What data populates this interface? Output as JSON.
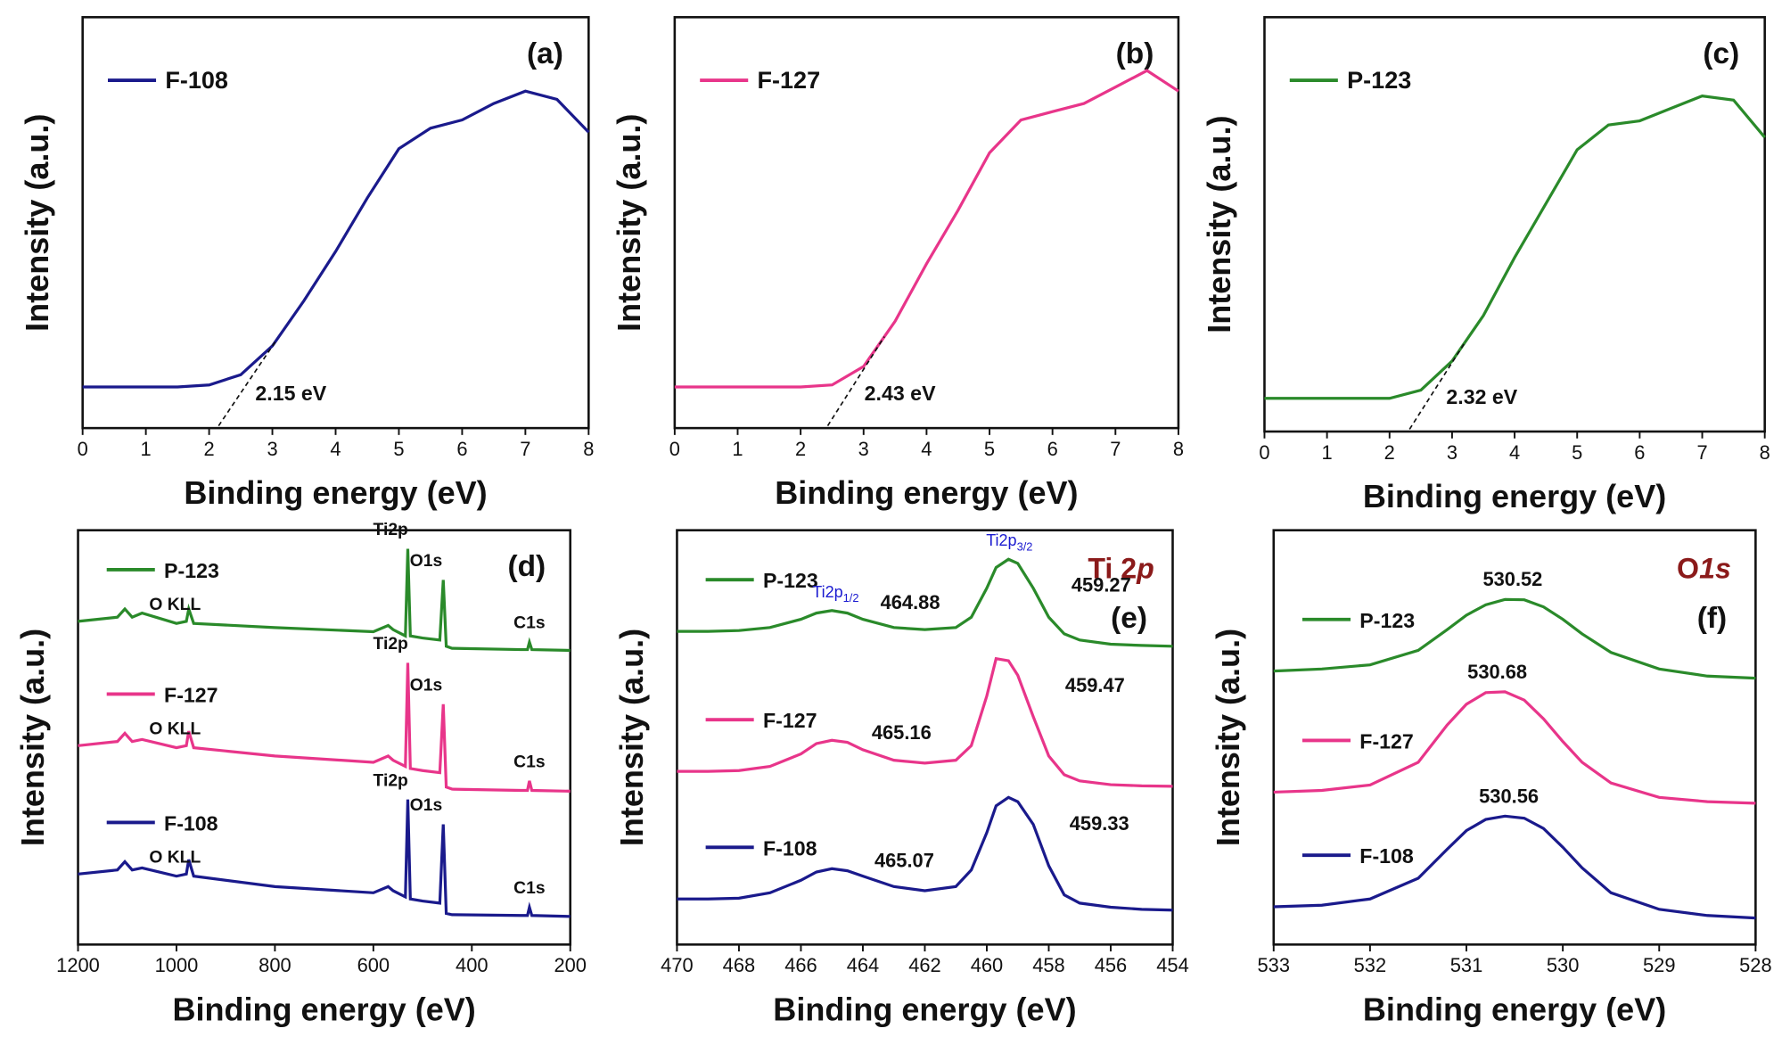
{
  "chart_data": [
    {
      "type": "line",
      "panel_label": "(a)",
      "xlabel": "Binding energy (eV)",
      "ylabel": "Intensity (a.u.)",
      "x": [
        0,
        0.5,
        1,
        1.5,
        2,
        2.5,
        3,
        3.5,
        4,
        4.5,
        5,
        5.5,
        6,
        6.5,
        7,
        7.5,
        8
      ],
      "xlim": [
        0,
        8
      ],
      "xticks": [
        0,
        1,
        2,
        3,
        4,
        5,
        6,
        7,
        8
      ],
      "ylim": [
        0,
        1
      ],
      "series": [
        {
          "name": "F-108",
          "color": "#1a1a8c",
          "values": [
            0.1,
            0.1,
            0.1,
            0.1,
            0.105,
            0.13,
            0.2,
            0.31,
            0.43,
            0.56,
            0.68,
            0.73,
            0.75,
            0.79,
            0.82,
            0.8,
            0.72
          ]
        }
      ],
      "annotation": {
        "label": "2.15 eV",
        "value": 2.15
      }
    },
    {
      "type": "line",
      "panel_label": "(b)",
      "xlabel": "Binding energy (eV)",
      "ylabel": "Intensity (a.u.)",
      "x": [
        0,
        0.5,
        1,
        1.5,
        2,
        2.5,
        3,
        3.5,
        4,
        4.5,
        5,
        5.5,
        6,
        6.5,
        7,
        7.5,
        8
      ],
      "xlim": [
        0,
        8
      ],
      "xticks": [
        0,
        1,
        2,
        3,
        4,
        5,
        6,
        7,
        8
      ],
      "ylim": [
        0,
        1
      ],
      "series": [
        {
          "name": "F-127",
          "color": "#e8358a",
          "values": [
            0.1,
            0.1,
            0.1,
            0.1,
            0.1,
            0.105,
            0.15,
            0.26,
            0.4,
            0.53,
            0.67,
            0.75,
            0.77,
            0.79,
            0.83,
            0.87,
            0.82
          ]
        }
      ],
      "annotation": {
        "label": "2.43 eV",
        "value": 2.43
      }
    },
    {
      "type": "line",
      "panel_label": "(c)",
      "xlabel": "Binding energy (eV)",
      "ylabel": "Intensity (a.u.)",
      "x": [
        0,
        0.5,
        1,
        1.5,
        2,
        2.5,
        3,
        3.5,
        4,
        4.5,
        5,
        5.5,
        6,
        6.5,
        7,
        7.5,
        8
      ],
      "xlim": [
        0,
        8
      ],
      "xticks": [
        0,
        1,
        2,
        3,
        4,
        5,
        6,
        7,
        8
      ],
      "ylim": [
        0,
        1
      ],
      "series": [
        {
          "name": "P-123",
          "color": "#2a8a2a",
          "values": [
            0.08,
            0.08,
            0.08,
            0.08,
            0.08,
            0.1,
            0.17,
            0.28,
            0.42,
            0.55,
            0.68,
            0.74,
            0.75,
            0.78,
            0.81,
            0.8,
            0.71
          ]
        }
      ],
      "annotation": {
        "label": "2.32 eV",
        "value": 2.32
      }
    },
    {
      "type": "line",
      "panel_label": "(d)",
      "xlabel": "Binding energy (eV)",
      "ylabel": "Intensity (a.u.)",
      "x": [
        1200,
        1120,
        1105,
        1090,
        1070,
        1000,
        980,
        975,
        965,
        800,
        600,
        570,
        560,
        535,
        530,
        525,
        500,
        465,
        458,
        452,
        440,
        300,
        287,
        283,
        278,
        200
      ],
      "xlim": [
        1200,
        200
      ],
      "xticks": [
        1200,
        1000,
        800,
        600,
        400,
        200
      ],
      "ylim": [
        0,
        1
      ],
      "peak_names": [
        "O KLL",
        "Ti2p",
        "O1s",
        "C1s"
      ],
      "series": [
        {
          "name": "P-123",
          "color": "#2a8a2a",
          "values": [
            0.78,
            0.79,
            0.81,
            0.79,
            0.8,
            0.775,
            0.78,
            0.81,
            0.775,
            0.765,
            0.755,
            0.77,
            0.76,
            0.745,
            0.955,
            0.745,
            0.74,
            0.735,
            0.88,
            0.72,
            0.715,
            0.712,
            0.712,
            0.73,
            0.712,
            0.71
          ]
        },
        {
          "name": "F-127",
          "color": "#e8358a",
          "values": [
            0.48,
            0.49,
            0.51,
            0.49,
            0.495,
            0.475,
            0.48,
            0.515,
            0.475,
            0.455,
            0.44,
            0.455,
            0.445,
            0.43,
            0.68,
            0.425,
            0.42,
            0.415,
            0.58,
            0.38,
            0.375,
            0.372,
            0.372,
            0.395,
            0.372,
            0.37
          ]
        },
        {
          "name": "F-108",
          "color": "#1a1a8c",
          "values": [
            0.17,
            0.18,
            0.2,
            0.18,
            0.185,
            0.165,
            0.17,
            0.205,
            0.165,
            0.14,
            0.125,
            0.14,
            0.13,
            0.115,
            0.35,
            0.11,
            0.105,
            0.1,
            0.29,
            0.075,
            0.072,
            0.07,
            0.07,
            0.09,
            0.07,
            0.068
          ]
        }
      ]
    },
    {
      "type": "line",
      "panel_label": "(e)",
      "xlabel": "Binding energy (eV)",
      "ylabel": "Intensity (a.u.)",
      "heading": "Ti 2",
      "heading_italic": "p",
      "peak_names": [
        "Ti2p",
        "Ti2p"
      ],
      "peak_name_subs": [
        "1/2",
        "3/2"
      ],
      "x": [
        470,
        469,
        468,
        467,
        466,
        465.5,
        465,
        464.5,
        464,
        463,
        462,
        461,
        460.5,
        460,
        459.7,
        459.3,
        459,
        458.5,
        458,
        457.5,
        457,
        456,
        455,
        454
      ],
      "xlim": [
        470,
        454
      ],
      "xticks": [
        470,
        468,
        466,
        464,
        462,
        460,
        458,
        456,
        454
      ],
      "ylim": [
        0,
        1
      ],
      "series": [
        {
          "name": "P-123",
          "color": "#2a8a2a",
          "peaks": [
            464.88,
            459.27
          ],
          "values": [
            0.756,
            0.756,
            0.758,
            0.765,
            0.785,
            0.8,
            0.806,
            0.8,
            0.785,
            0.765,
            0.76,
            0.765,
            0.79,
            0.86,
            0.91,
            0.93,
            0.92,
            0.86,
            0.79,
            0.75,
            0.735,
            0.725,
            0.722,
            0.72
          ]
        },
        {
          "name": "F-127",
          "color": "#e8358a",
          "peaks": [
            465.16,
            459.47
          ],
          "values": [
            0.418,
            0.418,
            0.42,
            0.43,
            0.46,
            0.485,
            0.493,
            0.488,
            0.47,
            0.445,
            0.438,
            0.445,
            0.48,
            0.6,
            0.69,
            0.685,
            0.65,
            0.55,
            0.455,
            0.41,
            0.395,
            0.386,
            0.383,
            0.382
          ]
        },
        {
          "name": "F-108",
          "color": "#1a1a8c",
          "peaks": [
            465.07,
            459.33
          ],
          "values": [
            0.11,
            0.11,
            0.112,
            0.125,
            0.155,
            0.175,
            0.183,
            0.178,
            0.165,
            0.14,
            0.13,
            0.14,
            0.18,
            0.27,
            0.335,
            0.355,
            0.345,
            0.29,
            0.19,
            0.12,
            0.1,
            0.09,
            0.085,
            0.083
          ]
        }
      ]
    },
    {
      "type": "line",
      "panel_label": "(f)",
      "xlabel": "Binding energy (eV)",
      "ylabel": "Intensity (a.u.)",
      "heading": "O",
      "heading_italic": "1s",
      "x": [
        533,
        532.5,
        532,
        531.5,
        531.2,
        531,
        530.8,
        530.6,
        530.4,
        530.2,
        530,
        529.8,
        529.5,
        529,
        528.5,
        528
      ],
      "xlim": [
        533,
        528
      ],
      "xticks": [
        533,
        532,
        531,
        530,
        529,
        528
      ],
      "ylim": [
        0,
        1
      ],
      "series": [
        {
          "name": "P-123",
          "color": "#2a8a2a",
          "peaks": [
            530.52
          ],
          "values": [
            0.66,
            0.665,
            0.675,
            0.71,
            0.76,
            0.795,
            0.82,
            0.833,
            0.832,
            0.815,
            0.785,
            0.75,
            0.705,
            0.665,
            0.648,
            0.643
          ]
        },
        {
          "name": "F-127",
          "color": "#e8358a",
          "peaks": [
            530.68
          ],
          "values": [
            0.368,
            0.372,
            0.385,
            0.44,
            0.53,
            0.58,
            0.608,
            0.61,
            0.59,
            0.545,
            0.49,
            0.44,
            0.39,
            0.355,
            0.345,
            0.341
          ]
        },
        {
          "name": "F-108",
          "color": "#1a1a8c",
          "peaks": [
            530.56
          ],
          "values": [
            0.091,
            0.095,
            0.11,
            0.16,
            0.23,
            0.275,
            0.302,
            0.31,
            0.305,
            0.28,
            0.235,
            0.185,
            0.125,
            0.085,
            0.07,
            0.064
          ]
        }
      ]
    }
  ]
}
